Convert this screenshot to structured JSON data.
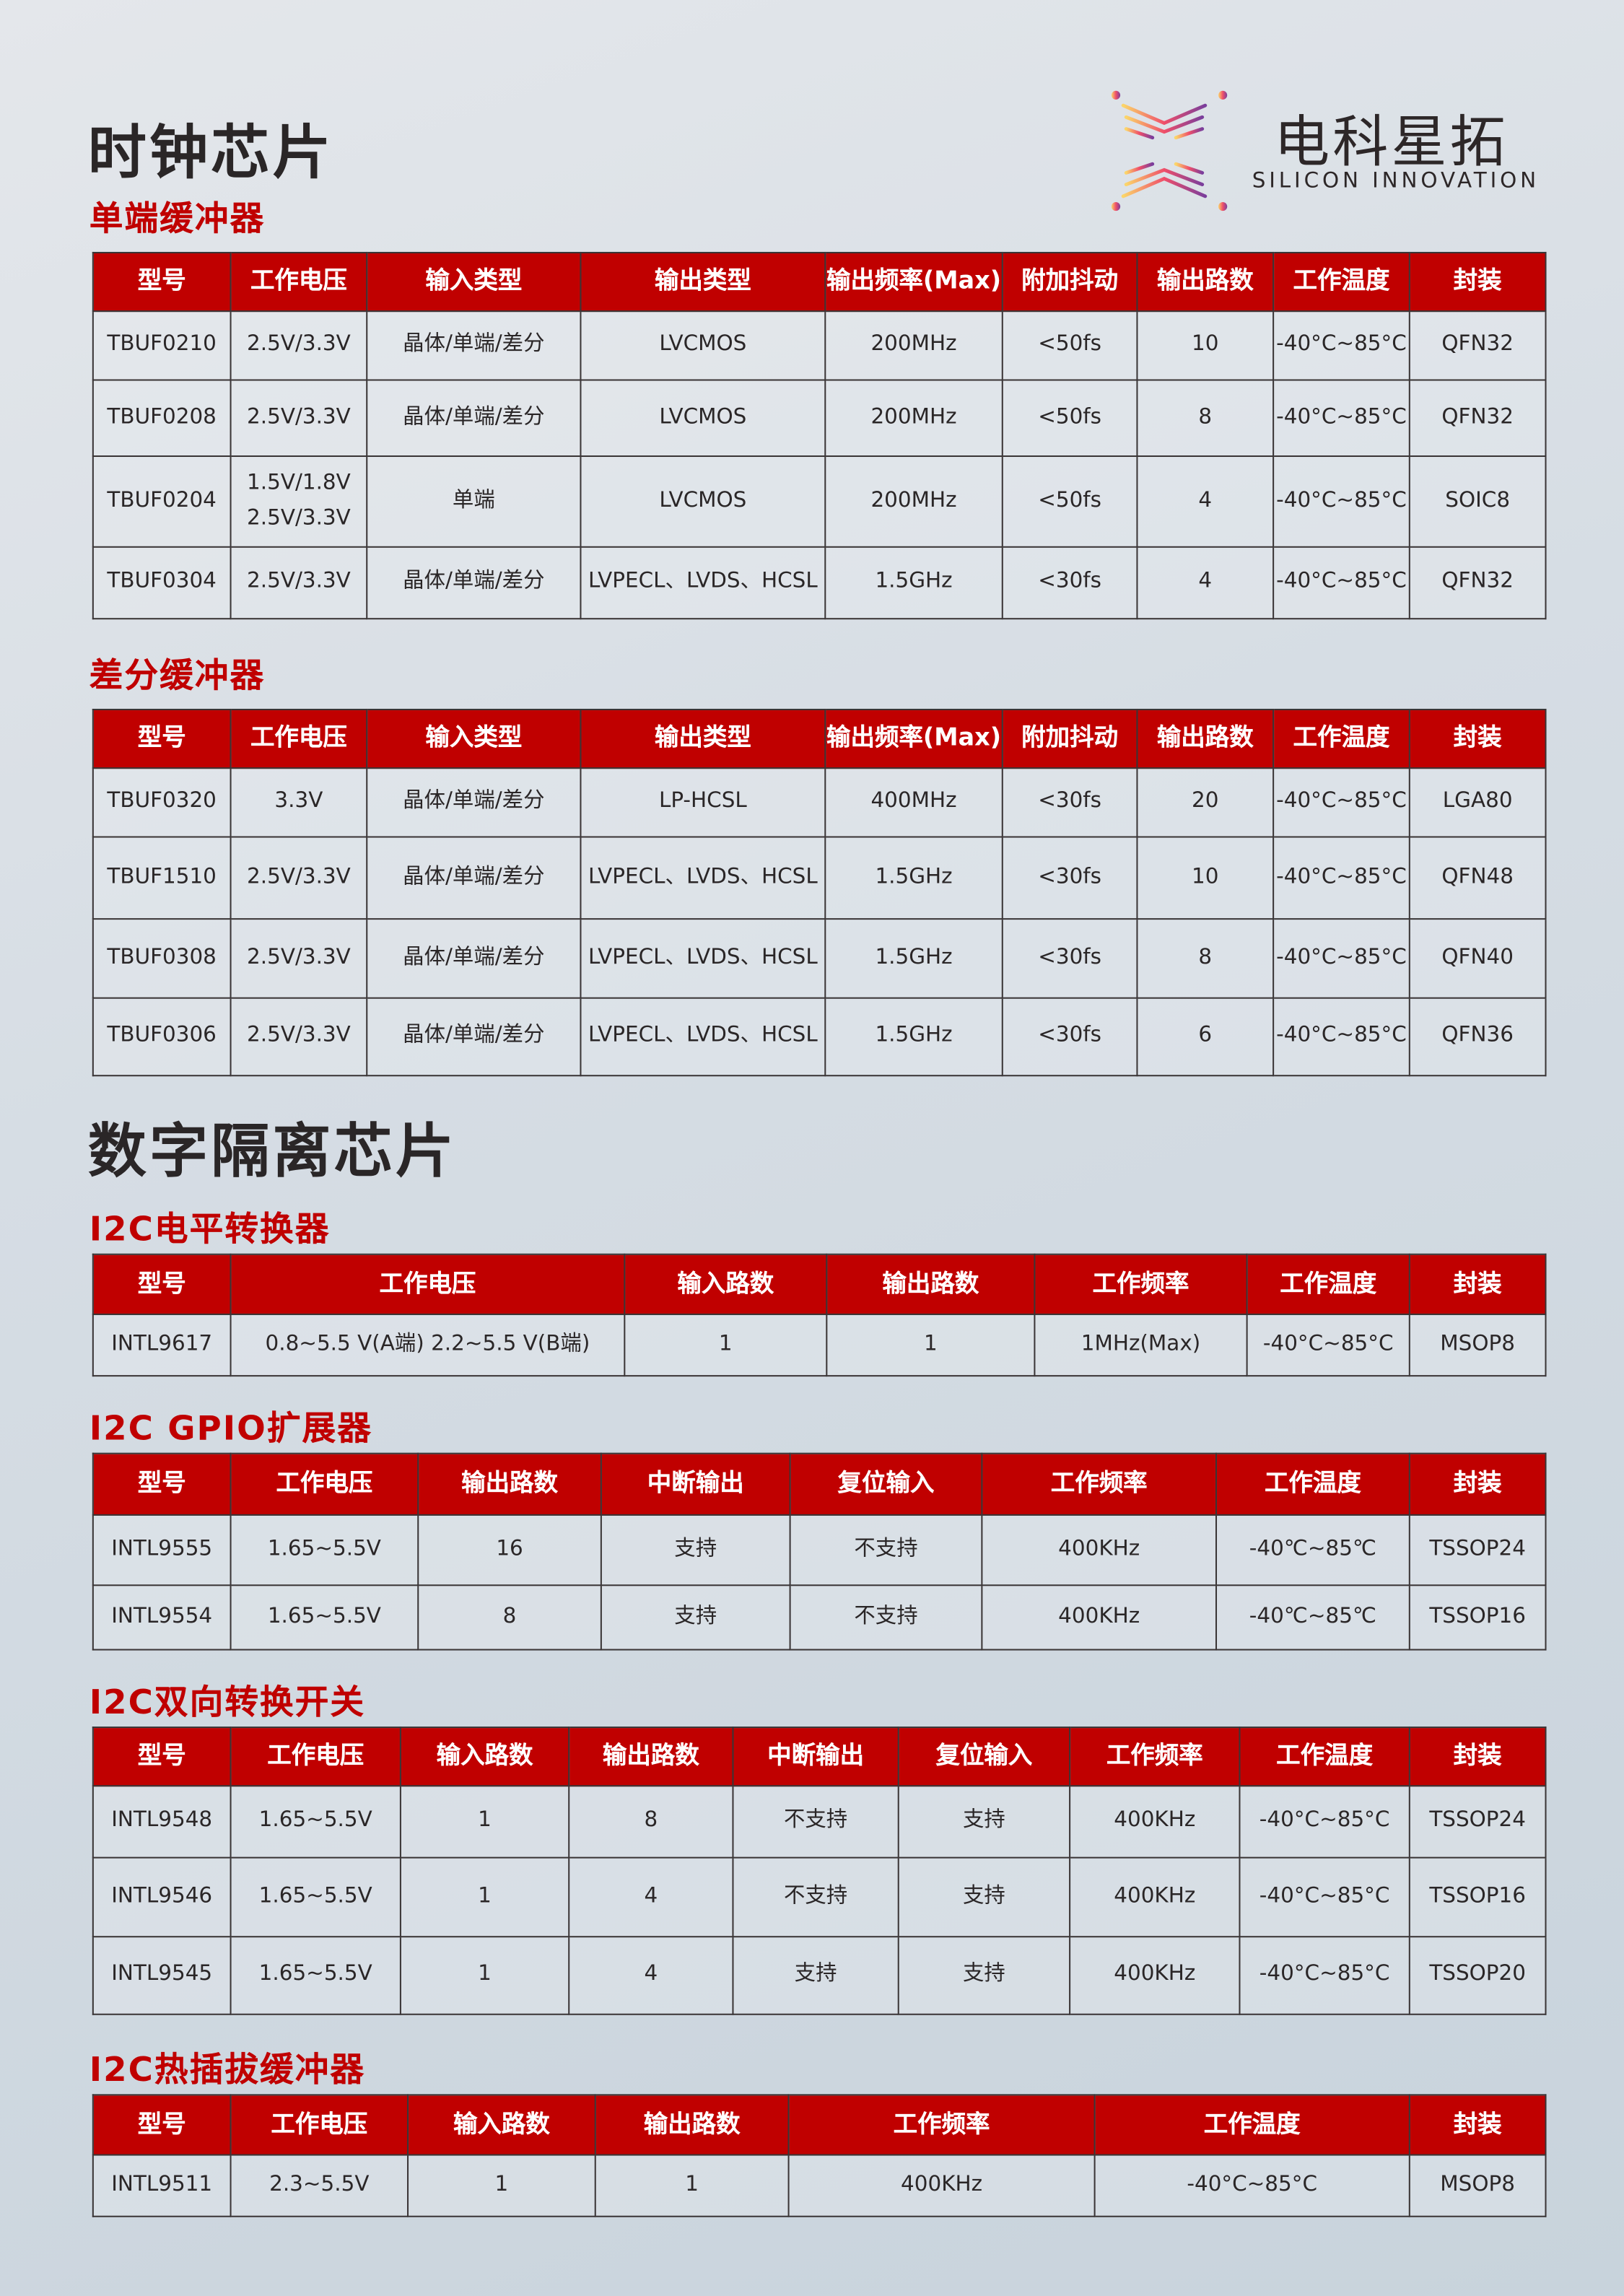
{
  "logo": {
    "cn": "电科星拓",
    "en": "SILICON INNOVATION"
  },
  "colors": {
    "header_bg": "#c00000",
    "subtitle": "#c00000",
    "title": "#2a2627",
    "border": "#3a3536"
  },
  "sections": [
    {
      "title": "时钟芯片",
      "groups": [
        {
          "title": "单端缓冲器",
          "headers": [
            "型号",
            "工作电压",
            "输入类型",
            "输出类型",
            "输出频率(Max)",
            "附加抖动",
            "输出路数",
            "工作温度",
            "封装"
          ],
          "rows": [
            [
              "TBUF0210",
              "2.5V/3.3V",
              "晶体/单端/差分",
              "LVCMOS",
              "200MHz",
              "<50fs",
              "10",
              "-40°C~85°C",
              "QFN32"
            ],
            [
              "TBUF0208",
              "2.5V/3.3V",
              "晶体/单端/差分",
              "LVCMOS",
              "200MHz",
              "<50fs",
              "8",
              "-40°C~85°C",
              "QFN32"
            ],
            [
              "TBUF0204",
              "1.5V/1.8V\n2.5V/3.3V",
              "单端",
              "LVCMOS",
              "200MHz",
              "<50fs",
              "4",
              "-40°C~85°C",
              "SOIC8"
            ],
            [
              "TBUF0304",
              "2.5V/3.3V",
              "晶体/单端/差分",
              "LVPECL、LVDS、HCSL",
              "1.5GHz",
              "<30fs",
              "4",
              "-40°C~85°C",
              "QFN32"
            ]
          ]
        },
        {
          "title": "差分缓冲器",
          "headers": [
            "型号",
            "工作电压",
            "输入类型",
            "输出类型",
            "输出频率(Max)",
            "附加抖动",
            "输出路数",
            "工作温度",
            "封装"
          ],
          "rows": [
            [
              "TBUF0320",
              "3.3V",
              "晶体/单端/差分",
              "LP-HCSL",
              "400MHz",
              "<30fs",
              "20",
              "-40°C~85°C",
              "LGA80"
            ],
            [
              "TBUF1510",
              "2.5V/3.3V",
              "晶体/单端/差分",
              "LVPECL、LVDS、HCSL",
              "1.5GHz",
              "<30fs",
              "10",
              "-40°C~85°C",
              "QFN48"
            ],
            [
              "TBUF0308",
              "2.5V/3.3V",
              "晶体/单端/差分",
              "LVPECL、LVDS、HCSL",
              "1.5GHz",
              "<30fs",
              "8",
              "-40°C~85°C",
              "QFN40"
            ],
            [
              "TBUF0306",
              "2.5V/3.3V",
              "晶体/单端/差分",
              "LVPECL、LVDS、HCSL",
              "1.5GHz",
              "<30fs",
              "6",
              "-40°C~85°C",
              "QFN36"
            ]
          ]
        }
      ]
    },
    {
      "title": "数字隔离芯片",
      "groups": [
        {
          "title": "I2C电平转换器",
          "headers": [
            "型号",
            "工作电压",
            "输入路数",
            "输出路数",
            "工作频率",
            "工作温度",
            "封装"
          ],
          "rows": [
            [
              "INTL9617",
              "0.8~5.5 V(A端)    2.2~5.5 V(B端)",
              "1",
              "1",
              "1MHz(Max)",
              "-40°C~85°C",
              "MSOP8"
            ]
          ]
        },
        {
          "title": "I2C GPIO扩展器",
          "headers": [
            "型号",
            "工作电压",
            "输出路数",
            "中断输出",
            "复位输入",
            "工作频率",
            "工作温度",
            "封装"
          ],
          "rows": [
            [
              "INTL9555",
              "1.65~5.5V",
              "16",
              "支持",
              "不支持",
              "400KHz",
              "-40℃~85℃",
              "TSSOP24"
            ],
            [
              "INTL9554",
              "1.65~5.5V",
              "8",
              "支持",
              "不支持",
              "400KHz",
              "-40℃~85℃",
              "TSSOP16"
            ]
          ]
        },
        {
          "title": "I2C双向转换开关",
          "headers": [
            "型号",
            "工作电压",
            "输入路数",
            "输出路数",
            "中断输出",
            "复位输入",
            "工作频率",
            "工作温度",
            "封装"
          ],
          "rows": [
            [
              "INTL9548",
              "1.65~5.5V",
              "1",
              "8",
              "不支持",
              "支持",
              "400KHz",
              "-40°C~85°C",
              "TSSOP24"
            ],
            [
              "INTL9546",
              "1.65~5.5V",
              "1",
              "4",
              "不支持",
              "支持",
              "400KHz",
              "-40°C~85°C",
              "TSSOP16"
            ],
            [
              "INTL9545",
              "1.65~5.5V",
              "1",
              "4",
              "支持",
              "支持",
              "400KHz",
              "-40°C~85°C",
              "TSSOP20"
            ]
          ]
        },
        {
          "title": "I2C热插拔缓冲器",
          "headers": [
            "型号",
            "工作电压",
            "输入路数",
            "输出路数",
            "工作频率",
            "工作温度",
            "封装"
          ],
          "rows": [
            [
              "INTL9511",
              "2.3~5.5V",
              "1",
              "1",
              "400KHz",
              "-40°C~85°C",
              "MSOP8"
            ]
          ]
        }
      ]
    }
  ]
}
